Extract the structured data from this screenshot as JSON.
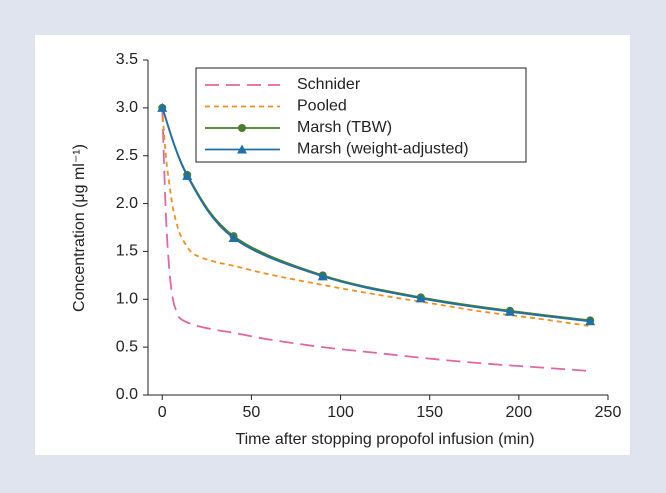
{
  "chart_data": {
    "type": "line",
    "xlabel": "Time after stopping propofol infusion (min)",
    "ylabel": "Concentration (μg ml⁻¹)",
    "xlim": [
      -8,
      250
    ],
    "xticks": [
      0,
      50,
      100,
      150,
      200,
      250
    ],
    "ylim": [
      0,
      3.5
    ],
    "yticks": [
      {
        "value": 0,
        "label": "0.0"
      },
      {
        "value": 0.5,
        "label": "0.5"
      },
      {
        "value": 1,
        "label": "1.0"
      },
      {
        "value": 1.5,
        "label": "1.5"
      },
      {
        "value": 2,
        "label": "2.0"
      },
      {
        "value": 2.5,
        "label": "2.5"
      },
      {
        "value": 3,
        "label": "3.0"
      },
      {
        "value": 3.5,
        "label": "3.5"
      }
    ],
    "legend": "top-left",
    "series": [
      {
        "name": "Schnider",
        "color": "#e066a6",
        "dash": "long",
        "marker": null,
        "x": [
          0,
          2,
          4,
          6,
          8,
          10,
          15,
          20,
          30,
          40,
          60,
          90,
          120,
          150,
          180,
          210,
          240
        ],
        "values": [
          3.0,
          1.9,
          1.3,
          1.0,
          0.87,
          0.8,
          0.75,
          0.72,
          0.68,
          0.65,
          0.58,
          0.5,
          0.44,
          0.38,
          0.33,
          0.29,
          0.25
        ]
      },
      {
        "name": "Pooled",
        "color": "#f0901e",
        "dash": "short",
        "marker": null,
        "x": [
          0,
          2,
          4,
          6,
          8,
          10,
          15,
          20,
          30,
          40,
          60,
          90,
          120,
          150,
          180,
          210,
          240
        ],
        "values": [
          3.0,
          2.5,
          2.2,
          1.95,
          1.8,
          1.68,
          1.52,
          1.45,
          1.39,
          1.35,
          1.26,
          1.15,
          1.05,
          0.96,
          0.87,
          0.8,
          0.72
        ]
      },
      {
        "name": "Marsh (TBW)",
        "color": "#4a7d2a",
        "dash": null,
        "marker": "circle",
        "x": [
          0,
          14,
          40,
          90,
          145,
          195,
          240
        ],
        "values": [
          3.0,
          2.3,
          1.66,
          1.25,
          1.02,
          0.88,
          0.78
        ]
      },
      {
        "name": "Marsh (weight-adjusted)",
        "color": "#1f6fa8",
        "dash": null,
        "marker": "triangle",
        "x": [
          0,
          14,
          40,
          90,
          145,
          195,
          240
        ],
        "values": [
          3.0,
          2.29,
          1.64,
          1.24,
          1.01,
          0.87,
          0.77
        ]
      }
    ]
  }
}
